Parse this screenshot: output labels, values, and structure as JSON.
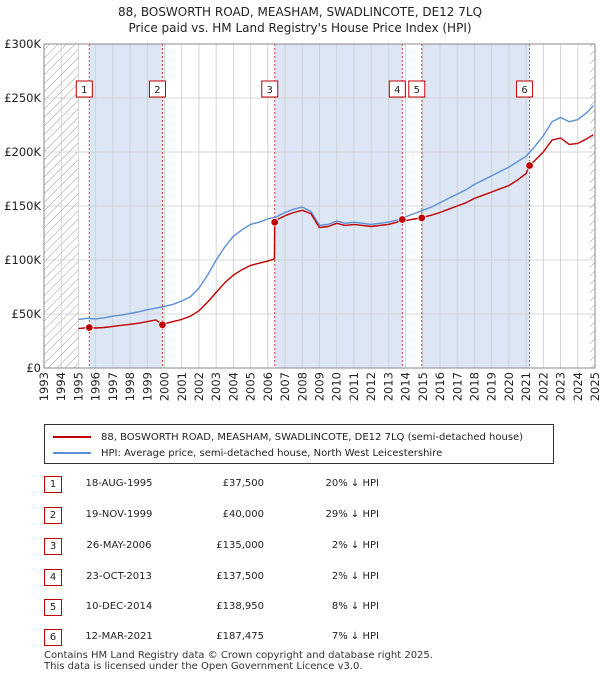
{
  "title_line1": "88, BOSWORTH ROAD, MEASHAM, SWADLINCOTE, DE12 7LQ",
  "title_line2": "Price paid vs. HM Land Registry's House Price Index (HPI)",
  "colors": {
    "property": "#c00000",
    "hpi": "#5b8fd6",
    "shade": "#dde6f5",
    "hatch": "#888888",
    "grid": "#cccccc"
  },
  "legend": {
    "property": "88, BOSWORTH ROAD, MEASHAM, SWADLINCOTE, DE12 7LQ (semi-detached house)",
    "hpi": "HPI: Average price, semi-detached house, North West Leicestershire"
  },
  "sales": [
    {
      "num": "1",
      "date": "18-AUG-1995",
      "price": "£37,500",
      "hpi": "20% ↓ HPI",
      "x": 1995.63,
      "y": 37500
    },
    {
      "num": "2",
      "date": "19-NOV-1999",
      "price": "£40,000",
      "hpi": "29% ↓ HPI",
      "x": 1999.88,
      "y": 40000
    },
    {
      "num": "3",
      "date": "26-MAY-2006",
      "price": "£135,000",
      "hpi": "2% ↓ HPI",
      "x": 2006.4,
      "y": 135000
    },
    {
      "num": "4",
      "date": "23-OCT-2013",
      "price": "£137,500",
      "hpi": "2% ↓ HPI",
      "x": 2013.81,
      "y": 137500
    },
    {
      "num": "5",
      "date": "10-DEC-2014",
      "price": "£138,950",
      "hpi": "8% ↓ HPI",
      "x": 2014.94,
      "y": 138950
    },
    {
      "num": "6",
      "date": "12-MAR-2021",
      "price": "£187,475",
      "hpi": "7% ↓ HPI",
      "x": 2021.2,
      "y": 187475
    }
  ],
  "footer_line1": "Contains HM Land Registry data © Crown copyright and database right 2025.",
  "footer_line2": "This data is licensed under the Open Government Licence v3.0.",
  "chart_data": {
    "type": "line",
    "title": "88, BOSWORTH ROAD, MEASHAM, SWADLINCOTE, DE12 7LQ",
    "subtitle": "Price paid vs. HM Land Registry's House Price Index (HPI)",
    "xlabel": "",
    "ylabel": "",
    "xlim": [
      1993,
      2025
    ],
    "ylim": [
      0,
      300000
    ],
    "x_ticks": [
      1993,
      1994,
      1995,
      1996,
      1997,
      1998,
      1999,
      2000,
      2001,
      2002,
      2003,
      2004,
      2005,
      2006,
      2007,
      2008,
      2009,
      2010,
      2011,
      2012,
      2013,
      2014,
      2015,
      2016,
      2017,
      2018,
      2019,
      2020,
      2021,
      2022,
      2023,
      2024,
      2025
    ],
    "y_ticks": [
      0,
      50000,
      100000,
      150000,
      200000,
      250000,
      300000
    ],
    "y_tick_labels": [
      "£0",
      "£50K",
      "£100K",
      "£150K",
      "£200K",
      "£250K",
      "£300K"
    ],
    "shaded_periods": [
      [
        1995.63,
        1999.88
      ],
      [
        2006.4,
        2013.81
      ],
      [
        2014.94,
        2021.2
      ]
    ],
    "hatched_periods": [
      [
        1993,
        1995.0
      ],
      [
        2024.7,
        2025
      ]
    ],
    "grid": true,
    "series": [
      {
        "name": "HPI: Average price, semi-detached house, North West Leicestershire",
        "color": "#5b8fd6",
        "x": [
          1995.0,
          1995.5,
          1996.0,
          1996.5,
          1997.0,
          1997.5,
          1998.0,
          1998.5,
          1999.0,
          1999.5,
          2000.0,
          2000.5,
          2001.0,
          2001.5,
          2002.0,
          2002.5,
          2003.0,
          2003.5,
          2004.0,
          2004.5,
          2005.0,
          2005.5,
          2006.0,
          2006.5,
          2007.0,
          2007.5,
          2008.0,
          2008.5,
          2009.0,
          2009.5,
          2010.0,
          2010.5,
          2011.0,
          2011.5,
          2012.0,
          2012.5,
          2013.0,
          2013.5,
          2014.0,
          2014.5,
          2015.0,
          2015.5,
          2016.0,
          2016.5,
          2017.0,
          2017.5,
          2018.0,
          2018.5,
          2019.0,
          2019.5,
          2020.0,
          2020.5,
          2021.0,
          2021.5,
          2022.0,
          2022.5,
          2023.0,
          2023.5,
          2024.0,
          2024.5,
          2024.9
        ],
        "y": [
          45000,
          46000,
          45500,
          46500,
          48000,
          49000,
          50500,
          52000,
          54000,
          55500,
          57000,
          59000,
          62000,
          66000,
          74000,
          86000,
          100000,
          112000,
          122000,
          128000,
          133000,
          135000,
          138000,
          140000,
          144000,
          147000,
          149000,
          145000,
          132000,
          133000,
          136000,
          134000,
          135000,
          134000,
          133000,
          134000,
          135000,
          137000,
          140000,
          143000,
          146000,
          149000,
          153000,
          157000,
          161000,
          165000,
          170000,
          174000,
          178000,
          182000,
          186000,
          191000,
          196000,
          205000,
          215000,
          228000,
          232000,
          228000,
          230000,
          236000,
          243000
        ]
      },
      {
        "name": "88, BOSWORTH ROAD, MEASHAM, SWADLINCOTE, DE12 7LQ (semi-detached house)",
        "color": "#c00000",
        "x": [
          1995.0,
          1995.63,
          1996.0,
          1996.5,
          1997.0,
          1997.5,
          1998.0,
          1998.5,
          1999.0,
          1999.5,
          1999.88,
          2000.0,
          2000.5,
          2001.0,
          2001.5,
          2002.0,
          2002.5,
          2003.0,
          2003.5,
          2004.0,
          2004.5,
          2005.0,
          2005.5,
          2006.0,
          2006.38,
          2006.4,
          2006.5,
          2007.0,
          2007.5,
          2008.0,
          2008.5,
          2009.0,
          2009.5,
          2010.0,
          2010.5,
          2011.0,
          2011.5,
          2012.0,
          2012.5,
          2013.0,
          2013.5,
          2013.81,
          2014.0,
          2014.5,
          2014.94,
          2015.0,
          2015.5,
          2016.0,
          2016.5,
          2017.0,
          2017.5,
          2018.0,
          2018.5,
          2019.0,
          2019.5,
          2020.0,
          2020.5,
          2021.0,
          2021.2,
          2021.5,
          2022.0,
          2022.5,
          2023.0,
          2023.5,
          2024.0,
          2024.5,
          2024.9
        ],
        "y": [
          36500,
          37500,
          37000,
          37500,
          38500,
          39500,
          40500,
          41500,
          43000,
          44500,
          40000,
          41000,
          43000,
          45000,
          48000,
          53000,
          61000,
          70000,
          79000,
          86000,
          91000,
          95000,
          97000,
          99000,
          101000,
          135000,
          137000,
          141000,
          144000,
          146000,
          143000,
          130000,
          131000,
          134000,
          132000,
          133000,
          132000,
          131000,
          132000,
          133000,
          135000,
          137500,
          136500,
          138000,
          138950,
          139500,
          141500,
          144000,
          147000,
          150000,
          153000,
          157000,
          160000,
          163000,
          166000,
          169000,
          174000,
          180000,
          187475,
          192000,
          200000,
          211000,
          213000,
          207000,
          208000,
          212000,
          216000
        ]
      }
    ]
  }
}
